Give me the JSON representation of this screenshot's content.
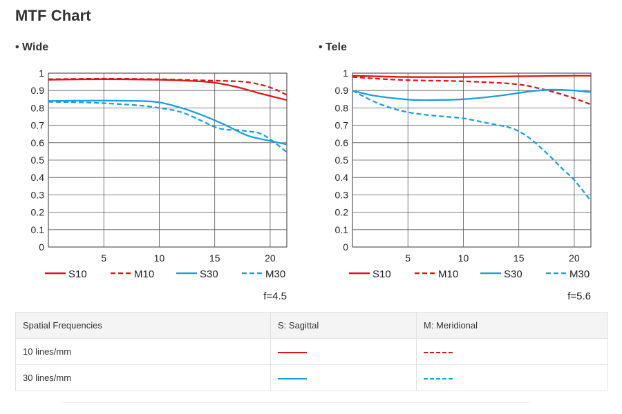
{
  "page": {
    "title": "MTF Chart"
  },
  "colors": {
    "red": "#e01414",
    "blue": "#1a9fe0",
    "grid": "#555555",
    "axis": "#333333"
  },
  "chart_data": [
    {
      "type": "line",
      "title": "• Wide",
      "xlim": [
        0,
        21.5
      ],
      "ylim": [
        0,
        1
      ],
      "xticks": [
        5,
        10,
        15,
        20
      ],
      "yticks": [
        0,
        0.1,
        0.2,
        0.3,
        0.4,
        0.5,
        0.6,
        0.7,
        0.8,
        0.9,
        1
      ],
      "ytick_labels": [
        "0",
        "0.1",
        "0.2",
        "0.3",
        "0.4",
        "0.5",
        "0.6",
        "0.7",
        "0.8",
        "0.9",
        "1"
      ],
      "xtick_labels": [
        "5",
        "10",
        "15",
        "20"
      ],
      "grid": true,
      "legend": "bottom",
      "annotation": "f=4.5",
      "series": [
        {
          "name": "S10",
          "color": "#e01414",
          "dash": false,
          "x": [
            0,
            5,
            10,
            13,
            15,
            17,
            19,
            21.5
          ],
          "y": [
            0.962,
            0.965,
            0.962,
            0.955,
            0.945,
            0.92,
            0.885,
            0.845
          ]
        },
        {
          "name": "M10",
          "color": "#e01414",
          "dash": true,
          "x": [
            0,
            5,
            10,
            14,
            16,
            18,
            20,
            21.5
          ],
          "y": [
            0.965,
            0.968,
            0.965,
            0.958,
            0.955,
            0.948,
            0.918,
            0.875
          ]
        },
        {
          "name": "S30",
          "color": "#1a9fe0",
          "dash": false,
          "x": [
            0,
            4,
            8,
            10,
            12,
            14,
            16,
            18,
            20,
            21.5
          ],
          "y": [
            0.84,
            0.842,
            0.84,
            0.832,
            0.8,
            0.755,
            0.7,
            0.64,
            0.61,
            0.59
          ]
        },
        {
          "name": "M30",
          "color": "#1a9fe0",
          "dash": true,
          "x": [
            0,
            4,
            8,
            10,
            12,
            14,
            15,
            16,
            17,
            18,
            19,
            20,
            21.5
          ],
          "y": [
            0.835,
            0.83,
            0.815,
            0.8,
            0.775,
            0.72,
            0.69,
            0.675,
            0.673,
            0.665,
            0.655,
            0.62,
            0.545
          ]
        }
      ]
    },
    {
      "type": "line",
      "title": "• Tele",
      "xlim": [
        0,
        21.5
      ],
      "ylim": [
        0,
        1
      ],
      "xticks": [
        5,
        10,
        15,
        20
      ],
      "yticks": [
        0,
        0.1,
        0.2,
        0.3,
        0.4,
        0.5,
        0.6,
        0.7,
        0.8,
        0.9,
        1
      ],
      "ytick_labels": [
        "0",
        "0.1",
        "0.2",
        "0.3",
        "0.4",
        "0.5",
        "0.6",
        "0.7",
        "0.8",
        "0.9",
        "1"
      ],
      "xtick_labels": [
        "5",
        "10",
        "15",
        "20"
      ],
      "grid": true,
      "legend": "bottom",
      "annotation": "f=5.6",
      "series": [
        {
          "name": "S10",
          "color": "#e01414",
          "dash": false,
          "x": [
            0,
            5,
            10,
            15,
            20,
            21.5
          ],
          "y": [
            0.985,
            0.978,
            0.978,
            0.982,
            0.985,
            0.985
          ]
        },
        {
          "name": "M10",
          "color": "#e01414",
          "dash": true,
          "x": [
            0,
            3,
            6,
            9,
            12,
            15,
            17,
            18.5,
            20,
            21.5
          ],
          "y": [
            0.978,
            0.965,
            0.958,
            0.955,
            0.948,
            0.935,
            0.91,
            0.885,
            0.855,
            0.82
          ]
        },
        {
          "name": "S30",
          "color": "#1a9fe0",
          "dash": false,
          "x": [
            0,
            2,
            5,
            7,
            10,
            13,
            16,
            18,
            20,
            21.5
          ],
          "y": [
            0.9,
            0.87,
            0.848,
            0.845,
            0.85,
            0.868,
            0.895,
            0.905,
            0.9,
            0.89
          ]
        },
        {
          "name": "M30",
          "color": "#1a9fe0",
          "dash": true,
          "x": [
            0,
            2,
            4,
            6,
            8,
            10,
            12,
            14,
            15,
            16,
            17,
            18,
            19,
            20,
            21.5
          ],
          "y": [
            0.9,
            0.835,
            0.79,
            0.765,
            0.752,
            0.74,
            0.715,
            0.69,
            0.665,
            0.625,
            0.57,
            0.51,
            0.445,
            0.385,
            0.265
          ]
        }
      ]
    }
  ],
  "legend_table": {
    "headers": [
      "Spatial Frequencies",
      "S: Sagittal",
      "M: Meridional"
    ],
    "rows": [
      {
        "label": "10 lines/mm",
        "color": "#e01414"
      },
      {
        "label": "30 lines/mm",
        "color": "#1a9fe0"
      }
    ]
  }
}
